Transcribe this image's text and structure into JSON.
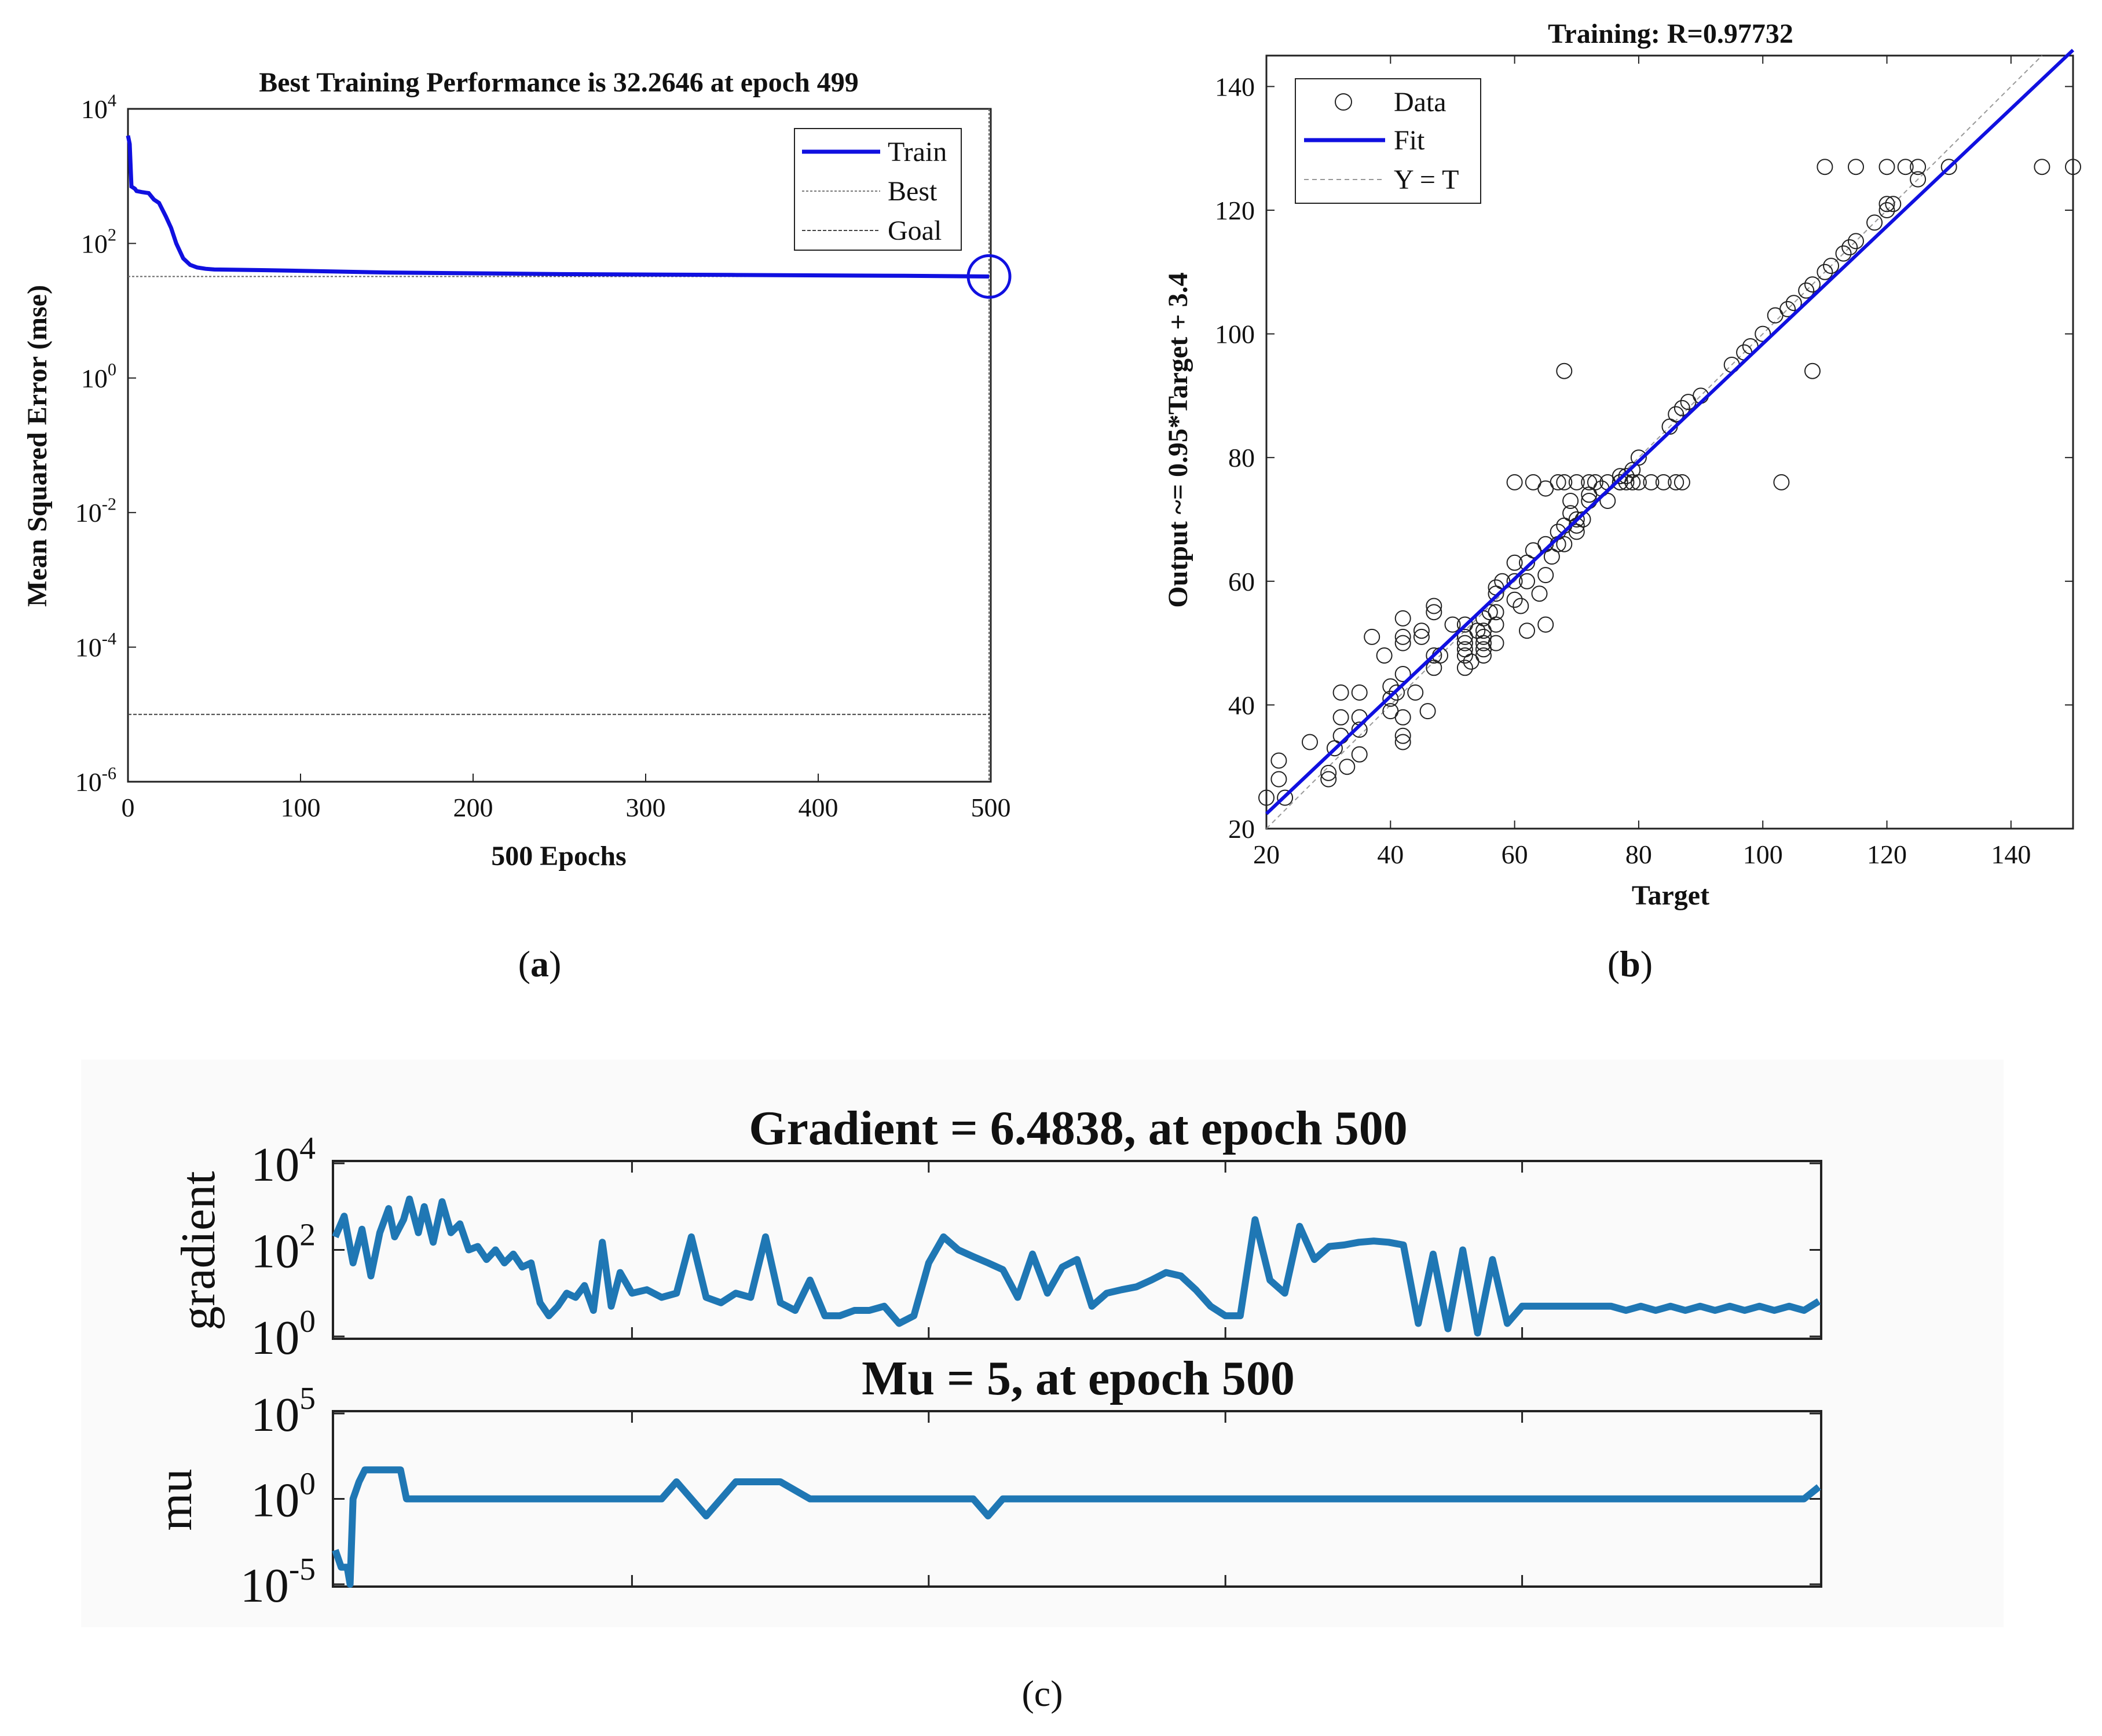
{
  "chart_data": [
    {
      "panel": "a",
      "type": "line",
      "yscale": "log",
      "title": "Best Training Performance is 32.2646 at epoch 499",
      "xlabel": "500 Epochs",
      "ylabel": "Mean Squared Error  (mse)",
      "xlim": [
        0,
        500
      ],
      "ylim": [
        1e-06,
        10000.0
      ],
      "xticks": [
        0,
        100,
        200,
        300,
        400,
        500
      ],
      "ytick_labels": [
        {
          "base": "10",
          "exp": "4",
          "value": 10000
        },
        {
          "base": "10",
          "exp": "2",
          "value": 100
        },
        {
          "base": "10",
          "exp": "0",
          "value": 1
        },
        {
          "base": "10",
          "exp": "-2",
          "value": 0.01
        },
        {
          "base": "10",
          "exp": "-4",
          "value": 0.0001
        },
        {
          "base": "10",
          "exp": "-6",
          "value": 1e-06
        }
      ],
      "legend": [
        "Train",
        "Best",
        "Goal"
      ],
      "legend_position": "top-right",
      "best": {
        "epoch": 499,
        "value": 32.2646
      },
      "goal": 1e-05,
      "series": [
        {
          "name": "Train",
          "color": "#1010e0",
          "x": [
            0,
            1,
            2,
            4,
            5,
            8,
            12,
            15,
            18,
            22,
            25,
            28,
            32,
            36,
            40,
            45,
            50,
            80,
            150,
            250,
            350,
            450,
            499
          ],
          "y": [
            4000,
            3000,
            700,
            650,
            600,
            580,
            560,
            450,
            400,
            250,
            170,
            100,
            60,
            48,
            44,
            42,
            41,
            40,
            37,
            35,
            34,
            33,
            32.2646
          ]
        }
      ],
      "marker_color": "#1010e0",
      "caption": "(a)"
    },
    {
      "panel": "b",
      "type": "scatter",
      "title": "Training: R=0.97732",
      "xlabel": "Target",
      "ylabel": "Output ~= 0.95*Target + 3.4",
      "xlim": [
        20,
        150
      ],
      "ylim": [
        20,
        145
      ],
      "xticks": [
        20,
        40,
        60,
        80,
        100,
        120,
        140
      ],
      "yticks": [
        20,
        40,
        60,
        80,
        100,
        120,
        140
      ],
      "legend": [
        "Data",
        "Fit",
        "Y = T"
      ],
      "legend_position": "top-left",
      "fit": {
        "slope": 0.95,
        "intercept": 3.4,
        "color": "#1010e0"
      },
      "points": [
        [
          20,
          25
        ],
        [
          22,
          28
        ],
        [
          22,
          31
        ],
        [
          23,
          25
        ],
        [
          27,
          34
        ],
        [
          30,
          28
        ],
        [
          30,
          29
        ],
        [
          31,
          33
        ],
        [
          32,
          35
        ],
        [
          32,
          38
        ],
        [
          32,
          42
        ],
        [
          33,
          30
        ],
        [
          35,
          32
        ],
        [
          35,
          36
        ],
        [
          35,
          38
        ],
        [
          35,
          42
        ],
        [
          37,
          51
        ],
        [
          39,
          48
        ],
        [
          40,
          41
        ],
        [
          40,
          39
        ],
        [
          40,
          43
        ],
        [
          41,
          42
        ],
        [
          42,
          34
        ],
        [
          42,
          35
        ],
        [
          42,
          38
        ],
        [
          42,
          45
        ],
        [
          42,
          50
        ],
        [
          42,
          51
        ],
        [
          42,
          54
        ],
        [
          44,
          42
        ],
        [
          45,
          51
        ],
        [
          45,
          52
        ],
        [
          46,
          39
        ],
        [
          47,
          46
        ],
        [
          47,
          48
        ],
        [
          47,
          55
        ],
        [
          47,
          56
        ],
        [
          48,
          48
        ],
        [
          50,
          53
        ],
        [
          52,
          46
        ],
        [
          52,
          48
        ],
        [
          52,
          49
        ],
        [
          52,
          50
        ],
        [
          52,
          51
        ],
        [
          52,
          53
        ],
        [
          53,
          47
        ],
        [
          54,
          52
        ],
        [
          55,
          48
        ],
        [
          55,
          49
        ],
        [
          55,
          50
        ],
        [
          55,
          51
        ],
        [
          55,
          52
        ],
        [
          55,
          54
        ],
        [
          56,
          55
        ],
        [
          57,
          50
        ],
        [
          57,
          53
        ],
        [
          57,
          55
        ],
        [
          57,
          58
        ],
        [
          57,
          59
        ],
        [
          58,
          60
        ],
        [
          60,
          57
        ],
        [
          60,
          60
        ],
        [
          60,
          63
        ],
        [
          61,
          56
        ],
        [
          62,
          52
        ],
        [
          62,
          60
        ],
        [
          62,
          63
        ],
        [
          63,
          65
        ],
        [
          64,
          58
        ],
        [
          65,
          53
        ],
        [
          65,
          61
        ],
        [
          65,
          66
        ],
        [
          66,
          64
        ],
        [
          67,
          66
        ],
        [
          67,
          68
        ],
        [
          68,
          66
        ],
        [
          68,
          69
        ],
        [
          69,
          71
        ],
        [
          69,
          73
        ],
        [
          70,
          68
        ],
        [
          70,
          69
        ],
        [
          70,
          70
        ],
        [
          71,
          70
        ],
        [
          72,
          73
        ],
        [
          72,
          74
        ],
        [
          74,
          75
        ],
        [
          75,
          73
        ],
        [
          77,
          76
        ],
        [
          77,
          77
        ],
        [
          78,
          76
        ],
        [
          78,
          77
        ],
        [
          79,
          78
        ],
        [
          80,
          80
        ],
        [
          60,
          76
        ],
        [
          63,
          76
        ],
        [
          65,
          75
        ],
        [
          67,
          76
        ],
        [
          68,
          76
        ],
        [
          70,
          76
        ],
        [
          72,
          76
        ],
        [
          73,
          76
        ],
        [
          75,
          76
        ],
        [
          77,
          76
        ],
        [
          79,
          76
        ],
        [
          80,
          76
        ],
        [
          82,
          76
        ],
        [
          84,
          76
        ],
        [
          86,
          76
        ],
        [
          87,
          76
        ],
        [
          68,
          94
        ],
        [
          85,
          85
        ],
        [
          86,
          87
        ],
        [
          87,
          88
        ],
        [
          88,
          89
        ],
        [
          90,
          90
        ],
        [
          95,
          95
        ],
        [
          97,
          97
        ],
        [
          98,
          98
        ],
        [
          100,
          100
        ],
        [
          102,
          103
        ],
        [
          103,
          76
        ],
        [
          104,
          104
        ],
        [
          105,
          105
        ],
        [
          107,
          107
        ],
        [
          108,
          94
        ],
        [
          108,
          108
        ],
        [
          110,
          110
        ],
        [
          111,
          111
        ],
        [
          113,
          113
        ],
        [
          114,
          114
        ],
        [
          115,
          115
        ],
        [
          118,
          118
        ],
        [
          120,
          120
        ],
        [
          120,
          121
        ],
        [
          121,
          121
        ],
        [
          110,
          127
        ],
        [
          115,
          127
        ],
        [
          120,
          127
        ],
        [
          123,
          127
        ],
        [
          125,
          125
        ],
        [
          125,
          127
        ],
        [
          130,
          127
        ],
        [
          145,
          127
        ],
        [
          150,
          127
        ]
      ],
      "caption": "(b)"
    },
    {
      "panel": "c-top",
      "type": "line",
      "yscale": "log",
      "title": "Gradient = 6.4838, at epoch 500",
      "ylabel": "gradient",
      "xlim": [
        0,
        500
      ],
      "ylim": [
        1,
        10000
      ],
      "ytick_labels": [
        {
          "base": "10",
          "exp": "4",
          "value": 10000
        },
        {
          "base": "10",
          "exp": "2",
          "value": 100
        },
        {
          "base": "10",
          "exp": "0",
          "value": 1
        }
      ],
      "color": "#1f77b4",
      "series": [
        {
          "name": "gradient",
          "x": [
            0,
            3,
            6,
            9,
            12,
            15,
            18,
            20,
            23,
            25,
            28,
            30,
            33,
            36,
            39,
            42,
            45,
            48,
            51,
            54,
            57,
            60,
            63,
            66,
            69,
            72,
            75,
            78,
            81,
            84,
            87,
            90,
            93,
            96,
            100,
            105,
            110,
            115,
            120,
            125,
            130,
            135,
            140,
            145,
            150,
            155,
            160,
            165,
            170,
            175,
            180,
            185,
            190,
            195,
            200,
            205,
            210,
            215,
            220,
            225,
            230,
            235,
            240,
            245,
            250,
            255,
            260,
            265,
            270,
            275,
            280,
            285,
            290,
            295,
            300,
            305,
            310,
            315,
            320,
            325,
            330,
            335,
            340,
            345,
            350,
            355,
            360,
            365,
            370,
            375,
            380,
            385,
            390,
            395,
            400,
            405,
            410,
            415,
            420,
            425,
            430,
            435,
            440,
            445,
            450,
            455,
            460,
            465,
            470,
            475,
            480,
            485,
            490,
            495,
            500
          ],
          "y": [
            200,
            600,
            50,
            300,
            25,
            250,
            900,
            200,
            500,
            1500,
            250,
            1000,
            150,
            1300,
            250,
            400,
            100,
            120,
            60,
            100,
            50,
            80,
            40,
            50,
            6,
            3,
            5,
            10,
            8,
            15,
            4,
            150,
            5,
            30,
            10,
            12,
            8,
            10,
            200,
            8,
            6,
            10,
            8,
            200,
            6,
            4,
            20,
            3,
            3,
            4,
            4,
            5,
            2,
            3,
            50,
            200,
            100,
            70,
            50,
            35,
            8,
            80,
            10,
            40,
            60,
            5,
            10,
            12,
            14,
            20,
            30,
            25,
            12,
            5,
            3,
            3,
            500,
            20,
            10,
            350,
            60,
            120,
            130,
            150,
            160,
            150,
            130,
            2,
            80,
            1.5,
            100,
            1.2,
            60,
            2,
            5,
            5,
            5,
            5,
            5,
            5,
            5,
            4,
            5,
            4,
            5,
            4,
            5,
            4,
            5,
            4,
            5,
            4,
            5,
            4,
            6.4838
          ]
        }
      ]
    },
    {
      "panel": "c-bottom",
      "type": "line",
      "yscale": "log",
      "title": "Mu = 5, at epoch 500",
      "ylabel": "mu",
      "xlim": [
        0,
        500
      ],
      "ylim": [
        1e-05,
        100000
      ],
      "ytick_labels": [
        {
          "base": "10",
          "exp": "5",
          "value": 100000
        },
        {
          "base": "10",
          "exp": "0",
          "value": 1
        },
        {
          "base": "10",
          "exp": "-5",
          "value": 1e-05
        }
      ],
      "color": "#1f77b4",
      "series": [
        {
          "name": "mu",
          "x": [
            0,
            2,
            4,
            5,
            6,
            8,
            10,
            12,
            14,
            16,
            18,
            20,
            22,
            24,
            26,
            28,
            30,
            32,
            35,
            40,
            45,
            50,
            60,
            70,
            80,
            90,
            100,
            105,
            110,
            115,
            120,
            125,
            130,
            135,
            140,
            145,
            150,
            160,
            180,
            200,
            210,
            215,
            220,
            225,
            230,
            240,
            260,
            280,
            300,
            320,
            340,
            360,
            380,
            400,
            405,
            410,
            415,
            420,
            425,
            430,
            435,
            440,
            445,
            450,
            455,
            460,
            465,
            470,
            475,
            480,
            485,
            490,
            495,
            500
          ],
          "y": [
            0.001,
            0.0001,
            0.0001,
            1e-05,
            1,
            10,
            50,
            50,
            50,
            50,
            50,
            50,
            50,
            1,
            1,
            1,
            1,
            1,
            1,
            1,
            1,
            1,
            1,
            1,
            1,
            1,
            1,
            1,
            1,
            10,
            1,
            0.1,
            1,
            10,
            10,
            10,
            10,
            1,
            1,
            1,
            1,
            1,
            0.1,
            1,
            1,
            1,
            1,
            1,
            1,
            1,
            1,
            1,
            1,
            1,
            1,
            1,
            1,
            1,
            1,
            1,
            1,
            1,
            1,
            1,
            1,
            1,
            1,
            1,
            1,
            1,
            1,
            1,
            1,
            5
          ]
        }
      ],
      "caption": "(c)"
    }
  ]
}
